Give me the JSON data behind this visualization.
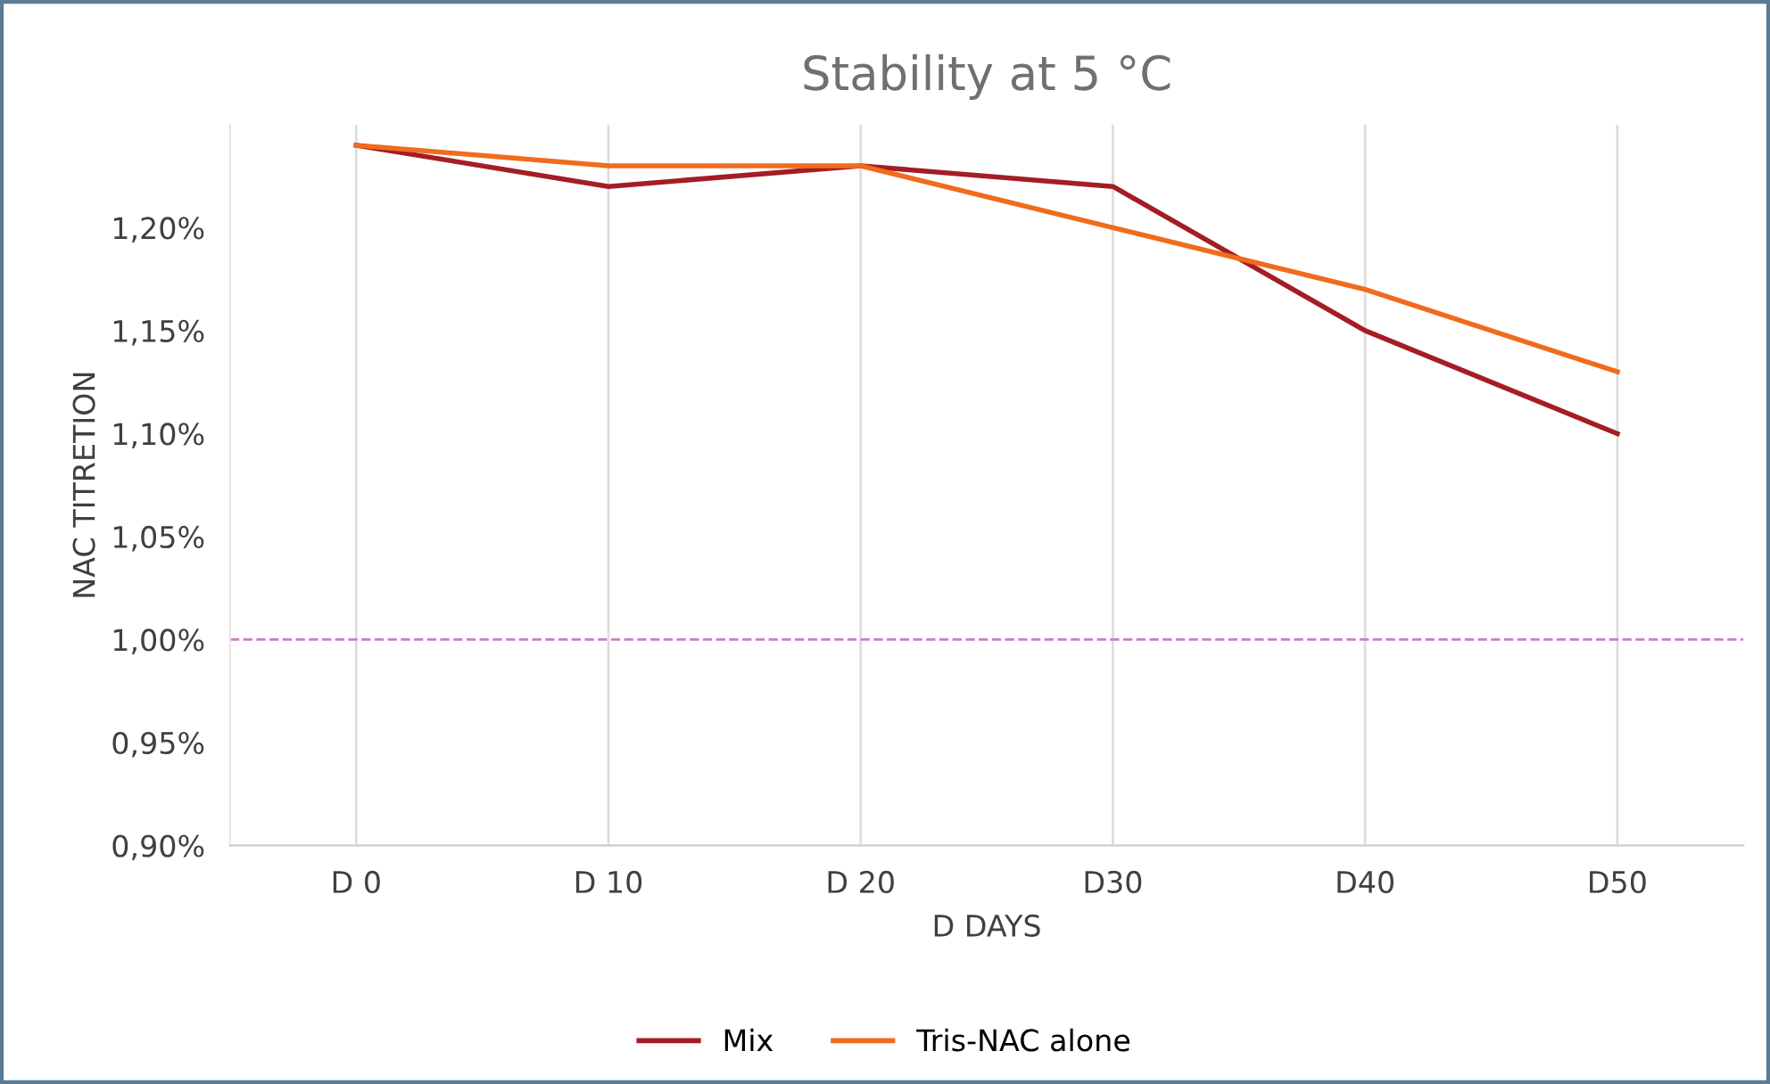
{
  "chart_data": {
    "type": "line",
    "title": "Stability at 5 °C",
    "xlabel": "D DAYS",
    "ylabel": "NAC TITRETION",
    "categories": [
      "D 0",
      "D 10",
      "D 20",
      "D30",
      "D40",
      "D50"
    ],
    "series": [
      {
        "name": "Mix",
        "color": "#a51d24",
        "values": [
          1.24,
          1.22,
          1.23,
          1.22,
          1.15,
          1.1
        ]
      },
      {
        "name": "Tris-NAC alone",
        "color": "#f06b1c",
        "values": [
          1.24,
          1.23,
          1.23,
          1.2,
          1.17,
          1.13
        ]
      }
    ],
    "ylim": [
      0.9,
      1.25
    ],
    "yticks": [
      {
        "value": 0.9,
        "label": "0,90%"
      },
      {
        "value": 0.95,
        "label": "0,95%"
      },
      {
        "value": 1.0,
        "label": "1,00%"
      },
      {
        "value": 1.05,
        "label": "1,05%"
      },
      {
        "value": 1.1,
        "label": "1,10%"
      },
      {
        "value": 1.15,
        "label": "1,15%"
      },
      {
        "value": 1.2,
        "label": "1,20%"
      }
    ],
    "ref_lines": [
      {
        "axis": "y",
        "value": 1.0,
        "label": null,
        "color": "#c87fc8",
        "line_style": "dashed"
      }
    ],
    "grid": "x",
    "legend": "bottom",
    "marker": "none",
    "line_style": "solid"
  }
}
